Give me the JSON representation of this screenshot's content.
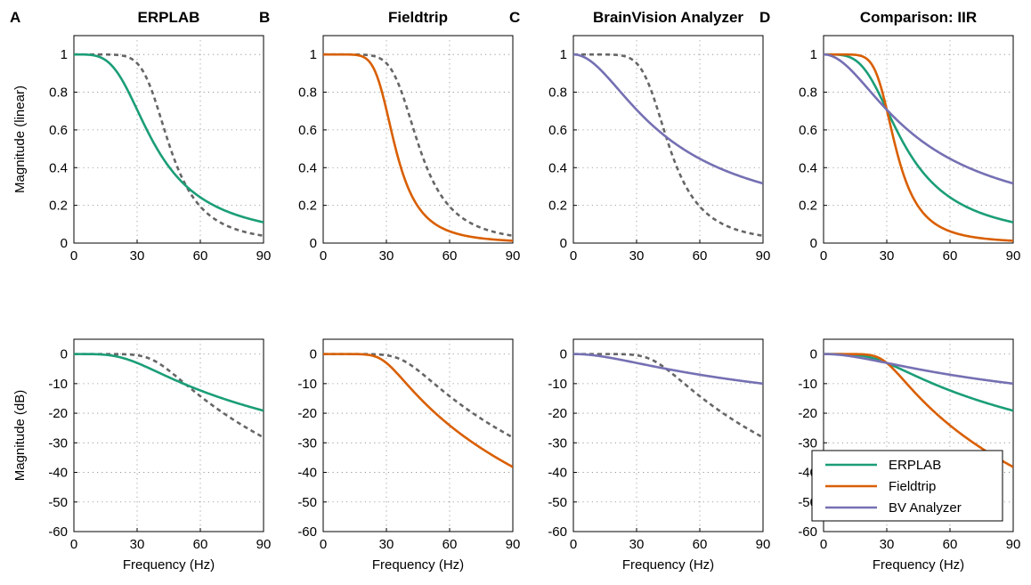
{
  "chart_data": {
    "type": "line",
    "x_ticks": [
      0,
      30,
      60,
      90
    ],
    "xlabel": "Frequency (Hz)",
    "rows": [
      {
        "ylabel": "Magnitude (linear)",
        "ylim": [
          0,
          1.1
        ],
        "y_ticks": [
          0,
          0.2,
          0.4,
          0.6,
          0.8,
          1
        ]
      },
      {
        "ylabel": "Magnitude (dB)",
        "ylim": [
          -60,
          5
        ],
        "y_ticks": [
          0,
          -10,
          -20,
          -30,
          -40,
          -50,
          -60
        ]
      }
    ],
    "panels": [
      {
        "letter": "A",
        "title": "ERPLAB",
        "dashed": true,
        "series": [
          {
            "name": "ERPLAB",
            "color": "#1b9e77",
            "order": 2,
            "fc": 30
          }
        ]
      },
      {
        "letter": "B",
        "title": "Fieldtrip",
        "dashed": true,
        "series": [
          {
            "name": "Fieldtrip",
            "color": "#d95f02",
            "order": 4,
            "fc": 30
          }
        ]
      },
      {
        "letter": "C",
        "title": "BrainVision Analyzer",
        "dashed": true,
        "series": [
          {
            "name": "BV Analyzer",
            "color": "#7570b3",
            "order": 1,
            "fc": 30
          }
        ]
      },
      {
        "letter": "D",
        "title": "Comparison: IIR",
        "dashed": false,
        "series": [
          {
            "name": "ERPLAB",
            "color": "#1b9e77",
            "order": 2,
            "fc": 30
          },
          {
            "name": "Fieldtrip",
            "color": "#d95f02",
            "order": 4,
            "fc": 30
          },
          {
            "name": "BV Analyzer",
            "color": "#7570b3",
            "order": 1,
            "fc": 30
          }
        ]
      }
    ],
    "reference": {
      "style": "dashed",
      "color": "#666666",
      "order": 4,
      "fc": 40
    },
    "legend": {
      "placement": "panel D bottom, lower-left",
      "entries": [
        {
          "label": "ERPLAB",
          "color": "#1b9e77"
        },
        {
          "label": "Fieldtrip",
          "color": "#d95f02"
        },
        {
          "label": "BV Analyzer",
          "color": "#7570b3"
        }
      ]
    },
    "grid": "dotted"
  }
}
